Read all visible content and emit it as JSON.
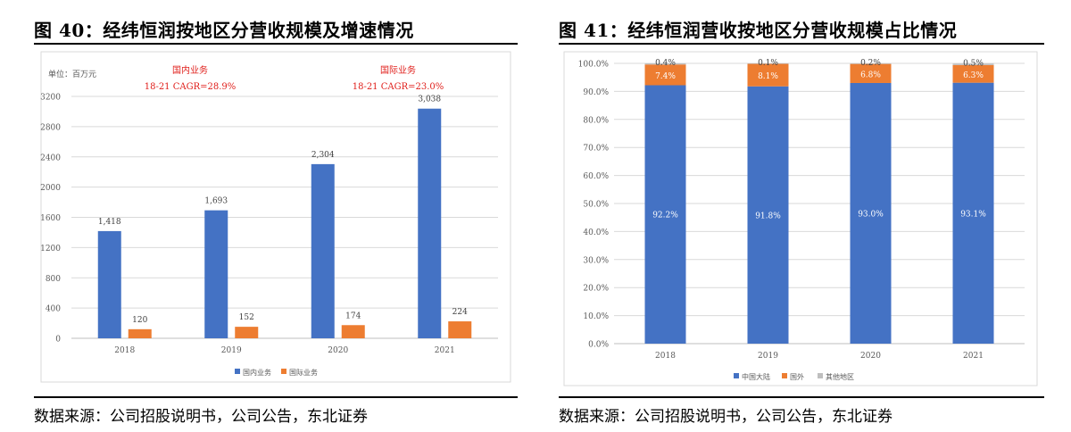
{
  "figures": [
    {
      "title": "图 40：经纬恒润按地区分营收规模及增速情况",
      "source": "数据来源：公司招股说明书，公司公告，东北证券",
      "unit_label": "单位：百万元",
      "annotations": [
        {
          "line1": "国内业务",
          "line2": "18-21 CAGR=28.9%"
        },
        {
          "line1": "国际业务",
          "line2": "18-21 CAGR=23.0%"
        }
      ]
    },
    {
      "title": "图 41：经纬恒润营收按地区分营收规模占比情况",
      "source": "数据来源：公司招股说明书，公司公告，东北证券"
    }
  ],
  "chart_data": [
    {
      "type": "bar",
      "categories": [
        "2018",
        "2019",
        "2020",
        "2021"
      ],
      "series": [
        {
          "name": "国内业务",
          "values": [
            1418,
            1693,
            2304,
            3038
          ],
          "labels": [
            "1,418",
            "1,693",
            "2,304",
            "3,038"
          ],
          "color": "#4472C4"
        },
        {
          "name": "国际业务",
          "values": [
            120,
            152,
            174,
            224
          ],
          "labels": [
            "120",
            "152",
            "174",
            "224"
          ],
          "color": "#ED7D31"
        }
      ],
      "ylim": [
        0,
        3200
      ],
      "yticks": [
        "0",
        "400",
        "800",
        "1200",
        "1600",
        "2000",
        "2400",
        "2800",
        "3200"
      ],
      "grid": true,
      "legend": "bottom"
    },
    {
      "type": "bar",
      "stacked": true,
      "categories": [
        "2018",
        "2019",
        "2020",
        "2021"
      ],
      "series": [
        {
          "name": "中国大陆",
          "values": [
            92.2,
            91.8,
            93.0,
            93.1
          ],
          "labels": [
            "92.2%",
            "91.8%",
            "93.0%",
            "93.1%"
          ],
          "color": "#4472C4"
        },
        {
          "name": "国外",
          "values": [
            7.4,
            8.1,
            6.8,
            6.3
          ],
          "labels": [
            "7.4%",
            "8.1%",
            "6.8%",
            "6.3%"
          ],
          "color": "#ED7D31"
        },
        {
          "name": "其他地区",
          "values": [
            0.4,
            0.1,
            0.2,
            0.5
          ],
          "labels": [
            "0.4%",
            "0.1%",
            "0.2%",
            "0.5%"
          ],
          "color": "#BFBFBF"
        }
      ],
      "ylim": [
        0,
        100
      ],
      "yticks": [
        "0.0%",
        "10.0%",
        "20.0%",
        "30.0%",
        "40.0%",
        "50.0%",
        "60.0%",
        "70.0%",
        "80.0%",
        "90.0%",
        "100.0%"
      ],
      "grid": true,
      "legend": "bottom"
    }
  ]
}
